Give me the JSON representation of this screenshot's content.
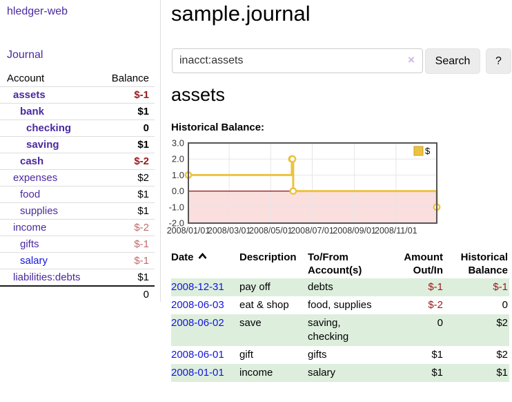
{
  "sidebar": {
    "app_title": "hledger-web",
    "journal_link": "Journal",
    "accounts_table": {
      "headers": {
        "account": "Account",
        "balance": "Balance"
      },
      "rows": [
        {
          "name": "assets",
          "balance": "$-1",
          "indent": 1,
          "bold": true,
          "tone": "neg-strong",
          "link": "purple"
        },
        {
          "name": "bank",
          "balance": "$1",
          "indent": 2,
          "bold": true,
          "tone": "normal",
          "link": "purple"
        },
        {
          "name": "checking",
          "balance": "0",
          "indent": 3,
          "bold": true,
          "tone": "normal",
          "link": "purple"
        },
        {
          "name": "saving",
          "balance": "$1",
          "indent": 3,
          "bold": true,
          "tone": "normal",
          "link": "purple"
        },
        {
          "name": "cash",
          "balance": "$-2",
          "indent": 2,
          "bold": true,
          "tone": "neg-strong",
          "link": "purple"
        },
        {
          "name": "expenses",
          "balance": "$2",
          "indent": 1,
          "bold": false,
          "tone": "normal",
          "link": "purple"
        },
        {
          "name": "food",
          "balance": "$1",
          "indent": 2,
          "bold": false,
          "tone": "normal",
          "link": "purple"
        },
        {
          "name": "supplies",
          "balance": "$1",
          "indent": 2,
          "bold": false,
          "tone": "normal",
          "link": "purple"
        },
        {
          "name": "income",
          "balance": "$-2",
          "indent": 1,
          "bold": false,
          "tone": "neg-soft",
          "link": "purple"
        },
        {
          "name": "gifts",
          "balance": "$-1",
          "indent": 2,
          "bold": false,
          "tone": "neg-soft",
          "link": "purple"
        },
        {
          "name": "salary",
          "balance": "$-1",
          "indent": 2,
          "bold": false,
          "tone": "neg-soft",
          "link": "blue"
        },
        {
          "name": "liabilities:debts",
          "balance": "$1",
          "indent": 1,
          "bold": false,
          "tone": "normal",
          "link": "purple"
        }
      ],
      "total": "0"
    }
  },
  "main": {
    "title": "sample.journal",
    "search": {
      "value": "inacct:assets",
      "clear_icon": "×",
      "search_button": "Search",
      "help_button": "?"
    },
    "account_heading": "assets"
  },
  "chart_data": {
    "type": "line",
    "step": true,
    "title": "Historical Balance:",
    "legend": {
      "label": "$",
      "position": "top-right",
      "swatch_color": "#EDC240"
    },
    "series": [
      {
        "name": "$",
        "points": [
          {
            "date": "2008-01-01",
            "value": 1.0
          },
          {
            "date": "2008-06-01",
            "value": 2.0
          },
          {
            "date": "2008-06-02",
            "value": 2.0
          },
          {
            "date": "2008-06-03",
            "value": 0.0
          },
          {
            "date": "2008-12-31",
            "value": -1.0
          }
        ]
      }
    ],
    "x_range": [
      "2008-01-01",
      "2008-12-31"
    ],
    "ylim": [
      -2.0,
      3.0
    ],
    "y_ticks": [
      3.0,
      2.0,
      1.0,
      0.0,
      -1.0,
      -2.0
    ],
    "x_ticks": [
      {
        "date": "2008-01-01",
        "label": "2008/01/01"
      },
      {
        "date": "2008-03-01",
        "label": "2008/03/01"
      },
      {
        "date": "2008-05-01",
        "label": "2008/05/01"
      },
      {
        "date": "2008-07-01",
        "label": "2008/07/01"
      },
      {
        "date": "2008-09-01",
        "label": "2008/09/01"
      },
      {
        "date": "2008-11-01",
        "label": "2008/11/01"
      }
    ],
    "grid": true,
    "colors": {
      "line": "#EDC240",
      "marker_fill": "#ffffff",
      "negative_region": "#fbdede",
      "zero_line": "#8b0f0f",
      "plot_border": "#545454",
      "gridline": "#e6e6e6",
      "tick_text": "#333333"
    }
  },
  "transactions": {
    "headers": {
      "date": "Date",
      "description": "Description",
      "tofrom": "To/From Account(s)",
      "amount": "Amount Out/In",
      "balance": "Historical Balance"
    },
    "rows": [
      {
        "date": "2008-12-31",
        "description": "pay off",
        "accounts": "debts",
        "amount": "$-1",
        "amount_negative": true,
        "balance": "$-1",
        "balance_negative": true
      },
      {
        "date": "2008-06-03",
        "description": "eat & shop",
        "accounts": "food, supplies",
        "amount": "$-2",
        "amount_negative": true,
        "balance": "0",
        "balance_negative": false
      },
      {
        "date": "2008-06-02",
        "description": "save",
        "accounts": "saving, checking",
        "amount": "0",
        "amount_negative": false,
        "balance": "$2",
        "balance_negative": false
      },
      {
        "date": "2008-06-01",
        "description": "gift",
        "accounts": "gifts",
        "amount": "$1",
        "amount_negative": false,
        "balance": "$2",
        "balance_negative": false
      },
      {
        "date": "2008-01-01",
        "description": "income",
        "accounts": "salary",
        "amount": "$1",
        "amount_negative": false,
        "balance": "$1",
        "balance_negative": false
      }
    ]
  },
  "colors": {
    "purple_link": "#4b28a0",
    "blue_link": "#1414e0",
    "negative_strong": "#9b1919",
    "negative_soft": "#c46a6a",
    "row_stripe_green": "#ddeedd"
  }
}
